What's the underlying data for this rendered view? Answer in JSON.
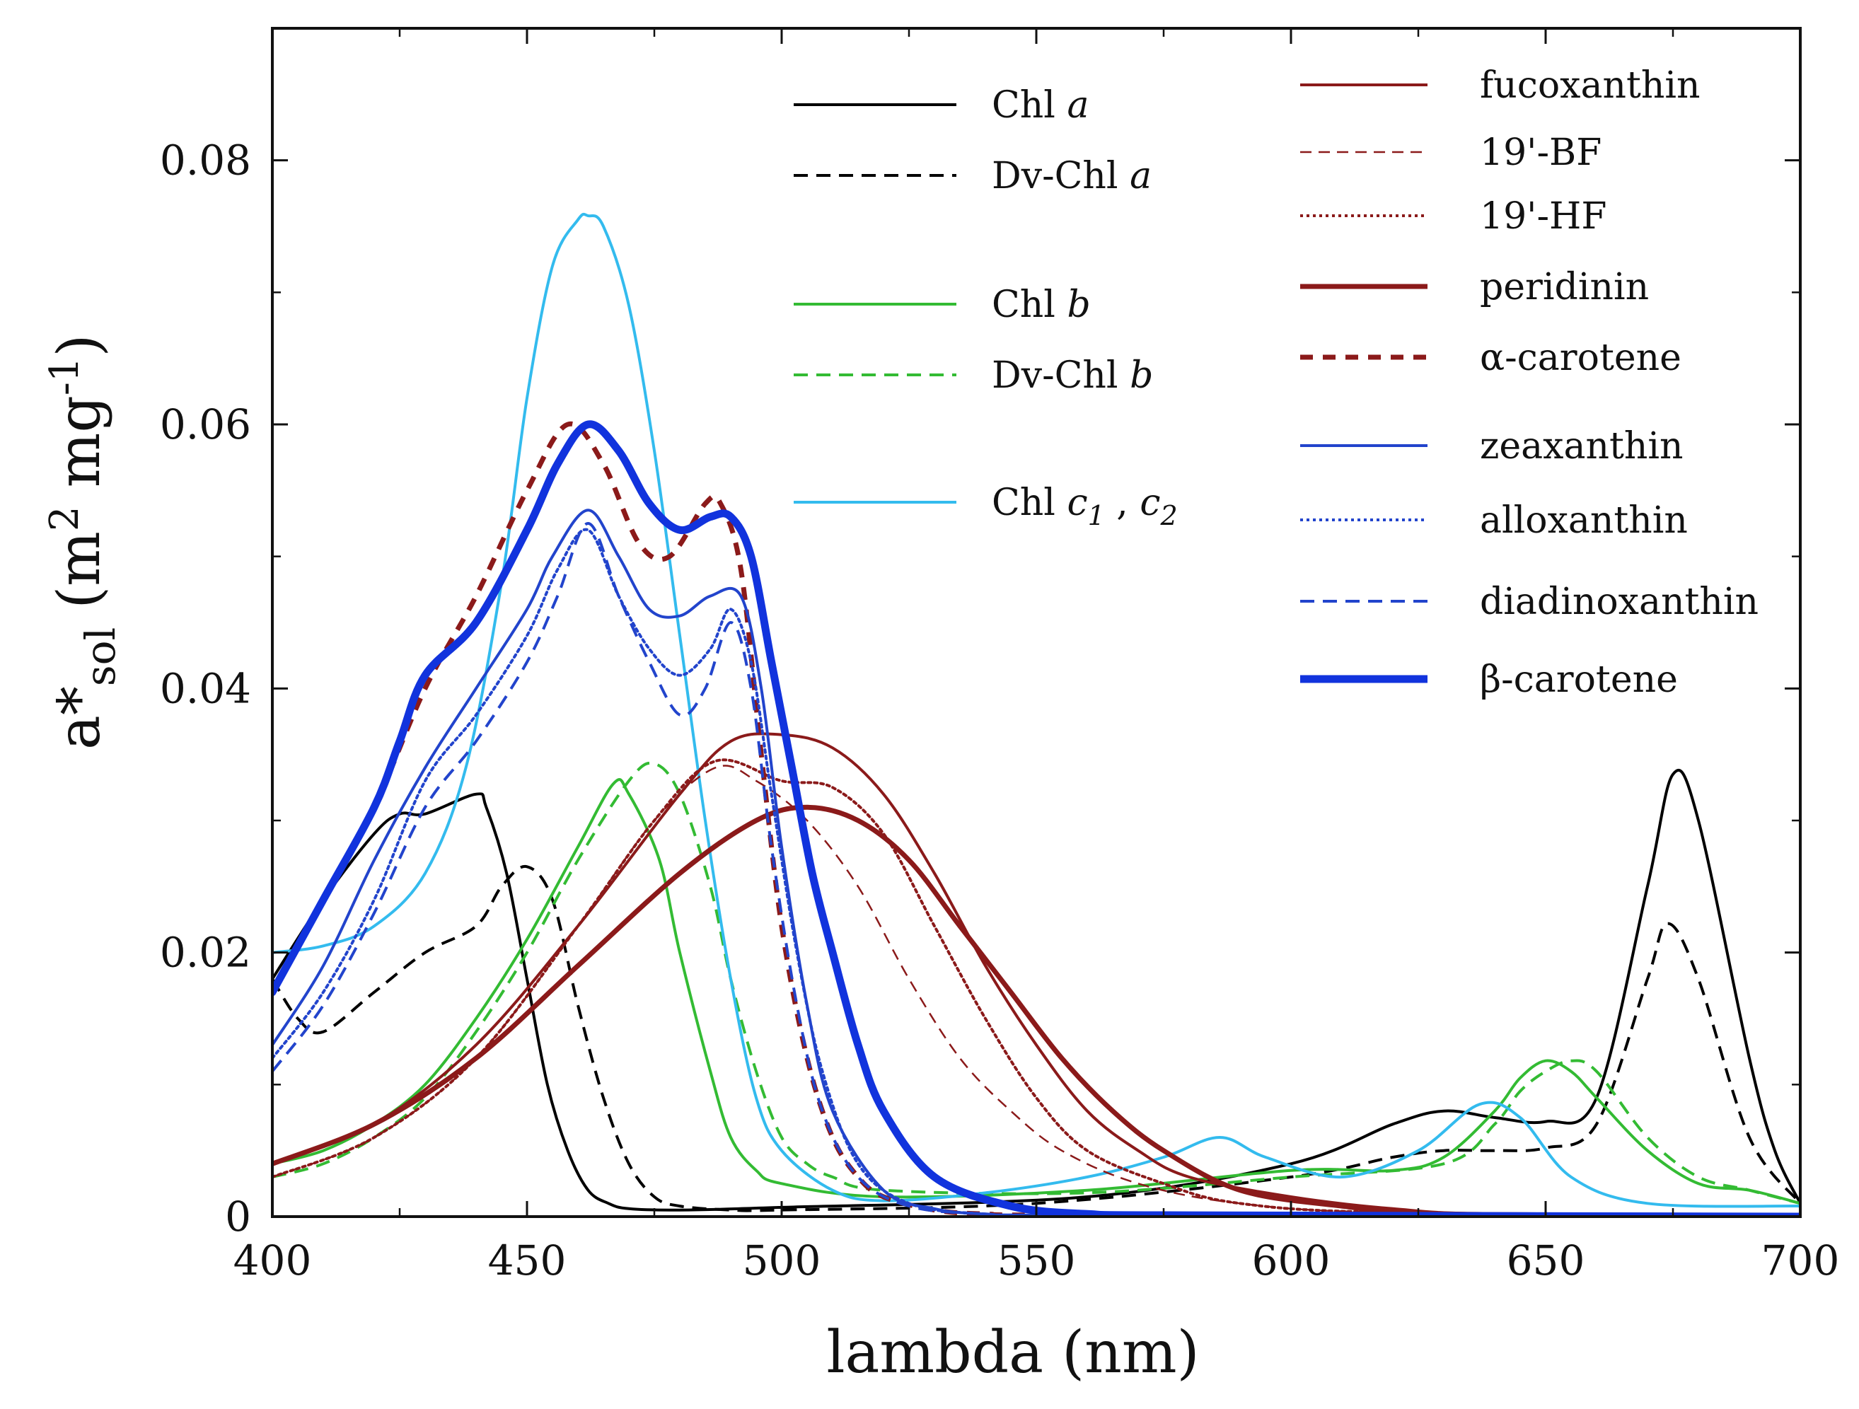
{
  "chart_data": {
    "type": "line",
    "xlabel": "lambda (nm)",
    "ylabel_base": "a*",
    "ylabel_sub": "sol",
    "ylabel_units_open": "(m",
    "ylabel_units_sup1": "2",
    "ylabel_units_mid": " mg",
    "ylabel_units_sup2": "-1",
    "ylabel_units_close": ")",
    "xlim": [
      400,
      700
    ],
    "ylim": [
      0,
      0.09
    ],
    "xticks": [
      400,
      450,
      500,
      550,
      600,
      650,
      700
    ],
    "xtick_labels": [
      "400",
      "450",
      "500",
      "550",
      "600",
      "650",
      "700"
    ],
    "yticks": [
      0,
      0.02,
      0.04,
      0.06,
      0.08
    ],
    "ytick_labels": [
      "0",
      "0.02",
      "0.04",
      "0.06",
      "0.08"
    ],
    "grid": false,
    "legend_placement": "top-right",
    "series": [
      {
        "name": "Chl a",
        "label_main": "Chl ",
        "label_italic": "a",
        "color": "#000000",
        "style": "solid",
        "weight": "normal",
        "x": [
          400,
          410,
          420,
          425,
          430,
          440,
          442,
          446,
          450,
          454,
          458,
          462,
          466,
          470,
          480,
          500,
          560,
          600,
          620,
          630,
          640,
          650,
          660,
          670,
          675,
          680,
          690,
          695,
          700
        ],
        "y": [
          0.018,
          0.024,
          0.029,
          0.0305,
          0.0305,
          0.032,
          0.031,
          0.026,
          0.018,
          0.01,
          0.005,
          0.002,
          0.001,
          0.0006,
          0.0005,
          0.0007,
          0.0015,
          0.004,
          0.007,
          0.008,
          0.0075,
          0.0072,
          0.009,
          0.025,
          0.0335,
          0.03,
          0.012,
          0.005,
          0.001
        ]
      },
      {
        "name": "Dv-Chl a",
        "label_main": "Dv-Chl ",
        "label_italic": "a",
        "color": "#000000",
        "style": "dashed",
        "weight": "normal",
        "x": [
          400,
          405,
          410,
          420,
          430,
          440,
          445,
          450,
          455,
          460,
          465,
          470,
          475,
          480,
          490,
          500,
          550,
          600,
          620,
          630,
          640,
          650,
          660,
          670,
          674,
          680,
          690,
          700
        ],
        "y": [
          0.018,
          0.015,
          0.014,
          0.017,
          0.02,
          0.022,
          0.025,
          0.0265,
          0.024,
          0.016,
          0.009,
          0.004,
          0.0015,
          0.0008,
          0.0005,
          0.0005,
          0.001,
          0.003,
          0.0045,
          0.005,
          0.005,
          0.0052,
          0.007,
          0.018,
          0.0222,
          0.018,
          0.006,
          0.001
        ]
      },
      {
        "name": "Chl b",
        "label_main": "Chl ",
        "label_italic": "b",
        "color": "#33bb33",
        "style": "solid",
        "weight": "normal",
        "x": [
          400,
          410,
          420,
          430,
          440,
          450,
          460,
          467,
          470,
          476,
          480,
          486,
          490,
          495,
          500,
          520,
          560,
          600,
          620,
          630,
          640,
          645,
          650,
          655,
          660,
          670,
          680,
          690,
          700
        ],
        "y": [
          0.004,
          0.005,
          0.007,
          0.01,
          0.015,
          0.021,
          0.028,
          0.0328,
          0.032,
          0.027,
          0.02,
          0.011,
          0.006,
          0.0035,
          0.0025,
          0.0015,
          0.002,
          0.0035,
          0.0035,
          0.0045,
          0.008,
          0.0105,
          0.0118,
          0.011,
          0.009,
          0.005,
          0.0025,
          0.002,
          0.001
        ]
      },
      {
        "name": "Dv-Chl b",
        "label_main": "Dv-Chl ",
        "label_italic": "b",
        "color": "#33bb33",
        "style": "dashed",
        "weight": "normal",
        "x": [
          400,
          410,
          420,
          430,
          440,
          450,
          460,
          470,
          475,
          480,
          486,
          490,
          495,
          500,
          505,
          510,
          520,
          560,
          600,
          630,
          640,
          645,
          650,
          655,
          660,
          670,
          680,
          690,
          700
        ],
        "y": [
          0.003,
          0.004,
          0.006,
          0.009,
          0.014,
          0.02,
          0.027,
          0.033,
          0.0343,
          0.032,
          0.025,
          0.018,
          0.011,
          0.006,
          0.004,
          0.003,
          0.002,
          0.0018,
          0.003,
          0.004,
          0.007,
          0.0095,
          0.011,
          0.0118,
          0.011,
          0.006,
          0.003,
          0.002,
          0.001
        ]
      },
      {
        "name": "Chl c1 , c2",
        "label_main": "Chl ",
        "label_italic": "c",
        "label_sub1": "1",
        "label_comma": " , ",
        "label_italic2": "c",
        "label_sub2": "2",
        "color": "#33bbee",
        "style": "solid",
        "weight": "normal",
        "x": [
          400,
          410,
          420,
          430,
          438,
          445,
          450,
          455,
          460,
          462,
          465,
          470,
          475,
          480,
          485,
          490,
          495,
          500,
          510,
          520,
          540,
          560,
          575,
          586,
          595,
          610,
          625,
          637,
          645,
          655,
          670,
          700
        ],
        "y": [
          0.02,
          0.0205,
          0.022,
          0.026,
          0.034,
          0.048,
          0.062,
          0.072,
          0.0755,
          0.0758,
          0.075,
          0.069,
          0.058,
          0.044,
          0.03,
          0.018,
          0.009,
          0.005,
          0.002,
          0.0012,
          0.0018,
          0.003,
          0.0045,
          0.006,
          0.0045,
          0.003,
          0.005,
          0.0085,
          0.0075,
          0.003,
          0.001,
          0.0008
        ]
      },
      {
        "name": "fucoxanthin",
        "color": "#8b1a1a",
        "style": "solid",
        "weight": "normal",
        "x": [
          400,
          420,
          440,
          460,
          480,
          490,
          500,
          510,
          520,
          530,
          540,
          550,
          560,
          570,
          580,
          600,
          620,
          640,
          700
        ],
        "y": [
          0.004,
          0.007,
          0.013,
          0.022,
          0.032,
          0.036,
          0.0365,
          0.0355,
          0.032,
          0.026,
          0.019,
          0.013,
          0.008,
          0.005,
          0.003,
          0.0015,
          0.0006,
          0.0002,
          0.0001
        ]
      },
      {
        "name": "19'-BF",
        "color": "#8b1a1a",
        "style": "dashed-thin",
        "weight": "thin",
        "x": [
          400,
          420,
          440,
          460,
          475,
          487,
          495,
          505,
          515,
          525,
          535,
          545,
          555,
          570,
          590,
          620,
          700
        ],
        "y": [
          0.003,
          0.006,
          0.012,
          0.022,
          0.03,
          0.034,
          0.033,
          0.03,
          0.025,
          0.018,
          0.012,
          0.008,
          0.005,
          0.0025,
          0.001,
          0.0003,
          0.0001
        ]
      },
      {
        "name": "19'-HF",
        "color": "#8b1a1a",
        "style": "dotted",
        "weight": "normal",
        "x": [
          400,
          420,
          440,
          460,
          475,
          487,
          500,
          510,
          520,
          530,
          540,
          550,
          560,
          575,
          590,
          620,
          700
        ],
        "y": [
          0.003,
          0.006,
          0.012,
          0.022,
          0.03,
          0.0345,
          0.033,
          0.0325,
          0.029,
          0.022,
          0.015,
          0.009,
          0.005,
          0.0025,
          0.001,
          0.0003,
          0.0001
        ]
      },
      {
        "name": "peridinin",
        "color": "#8b1a1a",
        "style": "solid",
        "weight": "bold",
        "x": [
          400,
          420,
          440,
          460,
          480,
          495,
          505,
          515,
          525,
          535,
          545,
          555,
          565,
          575,
          590,
          610,
          630,
          700
        ],
        "y": [
          0.004,
          0.007,
          0.012,
          0.019,
          0.026,
          0.03,
          0.031,
          0.03,
          0.027,
          0.022,
          0.017,
          0.012,
          0.008,
          0.005,
          0.002,
          0.0008,
          0.0002,
          0.0001
        ]
      },
      {
        "name": "α-carotene",
        "color": "#8b1a1a",
        "style": "dashed",
        "weight": "bold",
        "x": [
          400,
          410,
          420,
          430,
          440,
          450,
          458,
          465,
          472,
          478,
          485,
          488,
          492,
          496,
          500,
          505,
          510,
          515,
          520,
          530,
          540,
          560,
          700
        ],
        "y": [
          0.017,
          0.024,
          0.031,
          0.04,
          0.047,
          0.055,
          0.06,
          0.057,
          0.051,
          0.05,
          0.054,
          0.054,
          0.049,
          0.035,
          0.022,
          0.012,
          0.006,
          0.003,
          0.0015,
          0.0005,
          0.0002,
          0.0001,
          0.0
        ]
      },
      {
        "name": "zeaxanthin",
        "color": "#2244cc",
        "style": "solid",
        "weight": "normal",
        "x": [
          400,
          410,
          420,
          430,
          440,
          450,
          455,
          462,
          468,
          474,
          480,
          486,
          492,
          496,
          500,
          505,
          510,
          520,
          530,
          540,
          560,
          700
        ],
        "y": [
          0.013,
          0.019,
          0.027,
          0.034,
          0.04,
          0.046,
          0.05,
          0.0535,
          0.05,
          0.046,
          0.0455,
          0.047,
          0.047,
          0.04,
          0.028,
          0.016,
          0.008,
          0.002,
          0.0006,
          0.0002,
          0.0001,
          0.0
        ]
      },
      {
        "name": "alloxanthin",
        "color": "#2244cc",
        "style": "dotted",
        "weight": "normal",
        "x": [
          400,
          410,
          420,
          430,
          440,
          450,
          456,
          462,
          468,
          474,
          480,
          486,
          490,
          494,
          498,
          503,
          508,
          515,
          525,
          540,
          560,
          700
        ],
        "y": [
          0.012,
          0.017,
          0.024,
          0.033,
          0.038,
          0.044,
          0.049,
          0.052,
          0.047,
          0.043,
          0.041,
          0.043,
          0.046,
          0.042,
          0.032,
          0.02,
          0.011,
          0.004,
          0.001,
          0.0002,
          0.0001,
          0.0
        ]
      },
      {
        "name": "diadinoxanthin",
        "color": "#2244cc",
        "style": "dashed",
        "weight": "normal",
        "x": [
          400,
          410,
          420,
          430,
          440,
          450,
          456,
          462,
          468,
          474,
          480,
          485,
          490,
          494,
          498,
          503,
          508,
          515,
          525,
          540,
          560,
          700
        ],
        "y": [
          0.011,
          0.016,
          0.023,
          0.031,
          0.036,
          0.042,
          0.047,
          0.0525,
          0.047,
          0.042,
          0.038,
          0.04,
          0.045,
          0.04,
          0.028,
          0.016,
          0.008,
          0.003,
          0.0008,
          0.0002,
          0.0001,
          0.0
        ]
      },
      {
        "name": "β-carotene",
        "color": "#1133dd",
        "style": "solid",
        "weight": "heavy",
        "x": [
          400,
          410,
          420,
          425,
          430,
          440,
          450,
          456,
          462,
          468,
          474,
          480,
          486,
          490,
          494,
          498,
          502,
          506,
          510,
          515,
          520,
          530,
          545,
          560,
          580,
          700
        ],
        "y": [
          0.017,
          0.024,
          0.031,
          0.036,
          0.041,
          0.045,
          0.052,
          0.057,
          0.06,
          0.058,
          0.054,
          0.052,
          0.053,
          0.053,
          0.05,
          0.042,
          0.034,
          0.026,
          0.02,
          0.013,
          0.008,
          0.003,
          0.0008,
          0.0002,
          0.0001,
          0.0
        ]
      }
    ]
  }
}
